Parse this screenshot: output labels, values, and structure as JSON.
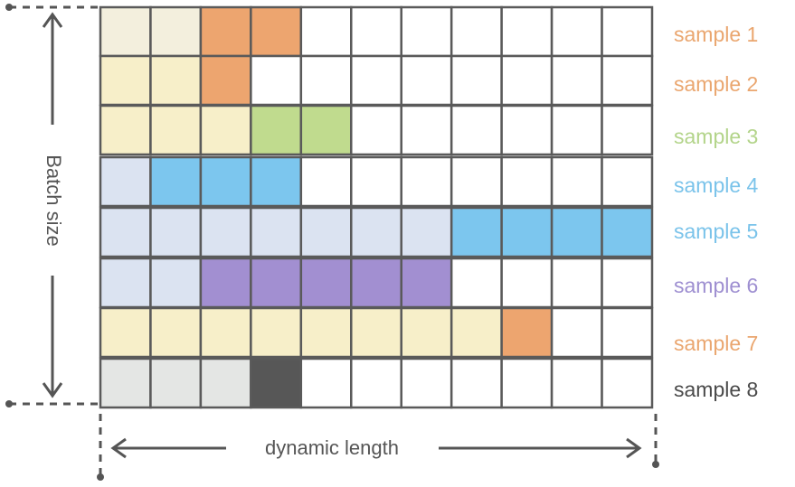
{
  "diagram": {
    "batch_axis_label": "Batch size",
    "length_axis_label": "dynamic length",
    "columns": 11,
    "colors": {
      "pad": "#ffffff",
      "grid_line": "#5a5a5a",
      "dashed_line": "#555555",
      "axis_text": "#555555"
    },
    "rows": [
      {
        "label": "sample 1",
        "label_color": "#eaa66f",
        "cells": [
          "#f3efdd",
          "#f3efdd",
          "#eda56f",
          "#eda56f"
        ]
      },
      {
        "label": "sample 2",
        "label_color": "#eaa66f",
        "cells": [
          "#f7efc9",
          "#f7efc9",
          "#eda56f"
        ]
      },
      {
        "label": "sample 3",
        "label_color": "#b3d48a",
        "cells": [
          "#f7efc9",
          "#f7efc9",
          "#f7efc9",
          "#c0db8e",
          "#c0db8e"
        ]
      },
      {
        "label": "sample 4",
        "label_color": "#7ac3ea",
        "cells": [
          "#dbe3f1",
          "#7cc6ee",
          "#7cc6ee",
          "#7cc6ee"
        ]
      },
      {
        "label": "sample 5",
        "label_color": "#7ac3ea",
        "cells": [
          "#dbe3f1",
          "#dbe3f1",
          "#dbe3f1",
          "#dbe3f1",
          "#dbe3f1",
          "#dbe3f1",
          "#dbe3f1",
          "#7cc6ee",
          "#7cc6ee",
          "#7cc6ee",
          "#7cc6ee"
        ]
      },
      {
        "label": "sample 6",
        "label_color": "#9e8fd1",
        "cells": [
          "#dbe3f1",
          "#dbe3f1",
          "#a28fd1",
          "#a28fd1",
          "#a28fd1",
          "#a28fd1",
          "#a28fd1"
        ]
      },
      {
        "label": "sample 7",
        "label_color": "#eaa66f",
        "cells": [
          "#f7efc9",
          "#f7efc9",
          "#f7efc9",
          "#f7efc9",
          "#f7efc9",
          "#f7efc9",
          "#f7efc9",
          "#f7efc9",
          "#eda56f"
        ]
      },
      {
        "label": "sample 8",
        "label_color": "#4a4a4a",
        "cells": [
          "#e4e6e4",
          "#e4e6e4",
          "#e4e6e4",
          "#575757"
        ]
      }
    ]
  }
}
